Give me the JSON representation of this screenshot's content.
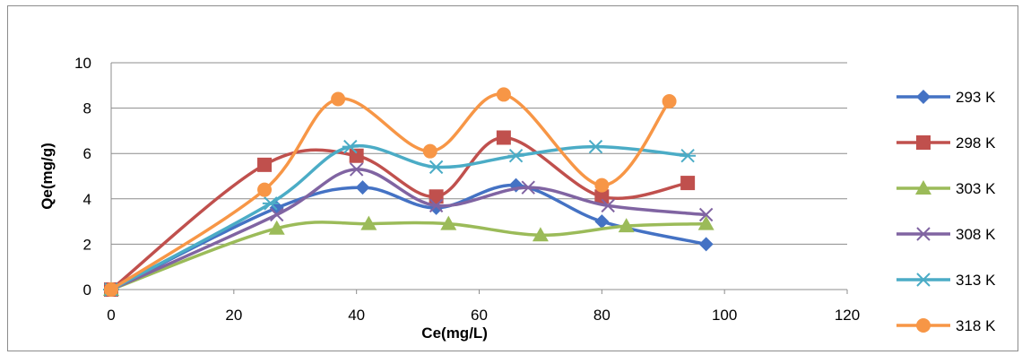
{
  "chart_data": {
    "type": "line",
    "title": "",
    "xlabel": "Ce(mg/L)",
    "ylabel": "Qe(mg/g)",
    "xlim": [
      0,
      120
    ],
    "ylim": [
      0,
      10
    ],
    "xticks": [
      "0",
      "20",
      "40",
      "60",
      "80",
      "100",
      "120"
    ],
    "yticks": [
      "0",
      "2",
      "4",
      "6",
      "8",
      "10"
    ],
    "grid": "horizontal",
    "legend": "right",
    "smooth": true,
    "series": [
      {
        "name": "293 K",
        "color": "#4472c4",
        "marker": "diamond",
        "x": [
          0,
          27,
          41,
          53,
          66,
          80,
          97
        ],
        "y": [
          0,
          3.6,
          4.5,
          3.6,
          4.6,
          3.0,
          2.0
        ]
      },
      {
        "name": "298 K",
        "color": "#c0504d",
        "marker": "square",
        "x": [
          0,
          25,
          40,
          53,
          64,
          80,
          94
        ],
        "y": [
          0,
          5.5,
          5.9,
          4.1,
          6.7,
          4.1,
          4.7
        ]
      },
      {
        "name": "303 K",
        "color": "#9bbb59",
        "marker": "triangle",
        "x": [
          0,
          27,
          42,
          55,
          70,
          84,
          97
        ],
        "y": [
          0,
          2.7,
          2.9,
          2.9,
          2.4,
          2.8,
          2.9
        ]
      },
      {
        "name": "308 K",
        "color": "#8064a2",
        "marker": "x",
        "x": [
          0,
          27,
          40,
          53,
          68,
          81,
          97
        ],
        "y": [
          0,
          3.3,
          5.3,
          3.7,
          4.5,
          3.7,
          3.3
        ]
      },
      {
        "name": "313 K",
        "color": "#4bacc6",
        "marker": "asterisk",
        "x": [
          0,
          26,
          39,
          53,
          66,
          79,
          94
        ],
        "y": [
          0,
          3.8,
          6.3,
          5.4,
          5.9,
          6.3,
          5.9
        ]
      },
      {
        "name": "318 K",
        "color": "#f79646",
        "marker": "circle",
        "x": [
          0,
          25,
          37,
          52,
          64,
          80,
          91
        ],
        "y": [
          0,
          4.4,
          8.4,
          6.1,
          8.6,
          4.6,
          8.3
        ]
      }
    ]
  }
}
